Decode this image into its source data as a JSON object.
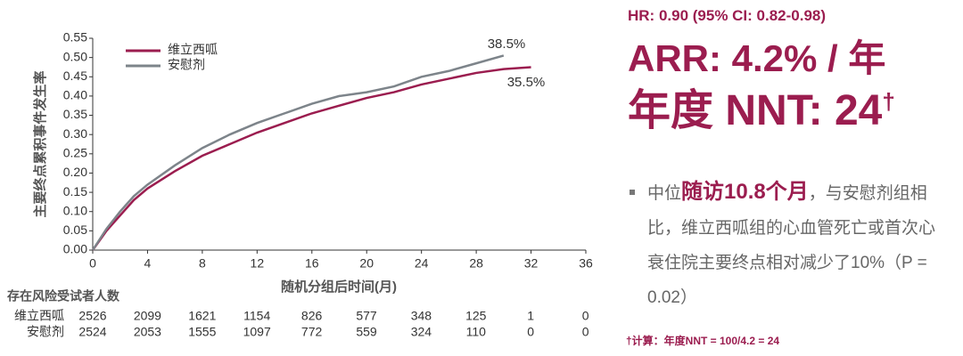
{
  "chart_data": {
    "type": "line",
    "y_label": "主要终点累积事件发生率",
    "x_label": "随机分组后时间(月)",
    "x": [
      0,
      1,
      2,
      3,
      4,
      6,
      8,
      10,
      12,
      14,
      16,
      18,
      20,
      22,
      24,
      26,
      28,
      30,
      32
    ],
    "series": [
      {
        "name": "维立西呱",
        "color": "#9b1d4f",
        "values": [
          0,
          0.05,
          0.09,
          0.13,
          0.16,
          0.205,
          0.245,
          0.275,
          0.305,
          0.33,
          0.355,
          0.375,
          0.395,
          0.41,
          0.43,
          0.445,
          0.46,
          0.47,
          0.475
        ]
      },
      {
        "name": "安慰剂",
        "color": "#7d848a",
        "values": [
          0,
          0.055,
          0.1,
          0.14,
          0.17,
          0.22,
          0.265,
          0.3,
          0.33,
          0.355,
          0.38,
          0.4,
          0.41,
          0.425,
          0.45,
          0.465,
          0.485,
          0.505,
          null
        ]
      }
    ],
    "annotations": [
      "38.5%",
      "35.5%"
    ],
    "xlim": [
      0,
      36
    ],
    "xticks": [
      0,
      4,
      8,
      12,
      16,
      20,
      24,
      28,
      32,
      36
    ],
    "ylim": [
      0,
      0.55
    ],
    "yticks": [
      {
        "value": 0,
        "label": "0.00"
      },
      0.05,
      {
        "value": 0.1,
        "label": "0.10"
      },
      0.15,
      {
        "value": 0.2,
        "label": "0.20"
      },
      0.25,
      {
        "value": 0.3,
        "label": "0.30"
      },
      0.35,
      {
        "value": 0.4,
        "label": "0.40"
      },
      0.45,
      {
        "value": 0.5,
        "label": "0.50"
      },
      0.55
    ],
    "grid": false,
    "risk_table": {
      "title": "存在风险受试者人数",
      "rows": [
        {
          "name": "维立西呱",
          "values": [
            "2526",
            "2099",
            "1621",
            "1154",
            "826",
            "577",
            "348",
            "125",
            "1",
            "0"
          ]
        },
        {
          "name": "安慰剂",
          "values": [
            "2524",
            "2053",
            "1555",
            "1097",
            "772",
            "559",
            "324",
            "110",
            "0",
            "0"
          ]
        }
      ]
    }
  },
  "panel": {
    "hr": "HR: 0.90 (95% CI: 0.82-0.98)",
    "arr": "ARR: 4.2% / 年",
    "nnt": "年度 NNT: 24",
    "nnt_mark": "†",
    "bullet": {
      "lead": "中位",
      "highlight": "随访10.8个月",
      "rest": "，与安慰剂组相比，维立西呱组的心血管死亡或首次心衰住院主要终点相对减少了10%（P = 0.02）"
    },
    "footnote": "†计算：年度NNT = 100/4.2 = 24"
  }
}
